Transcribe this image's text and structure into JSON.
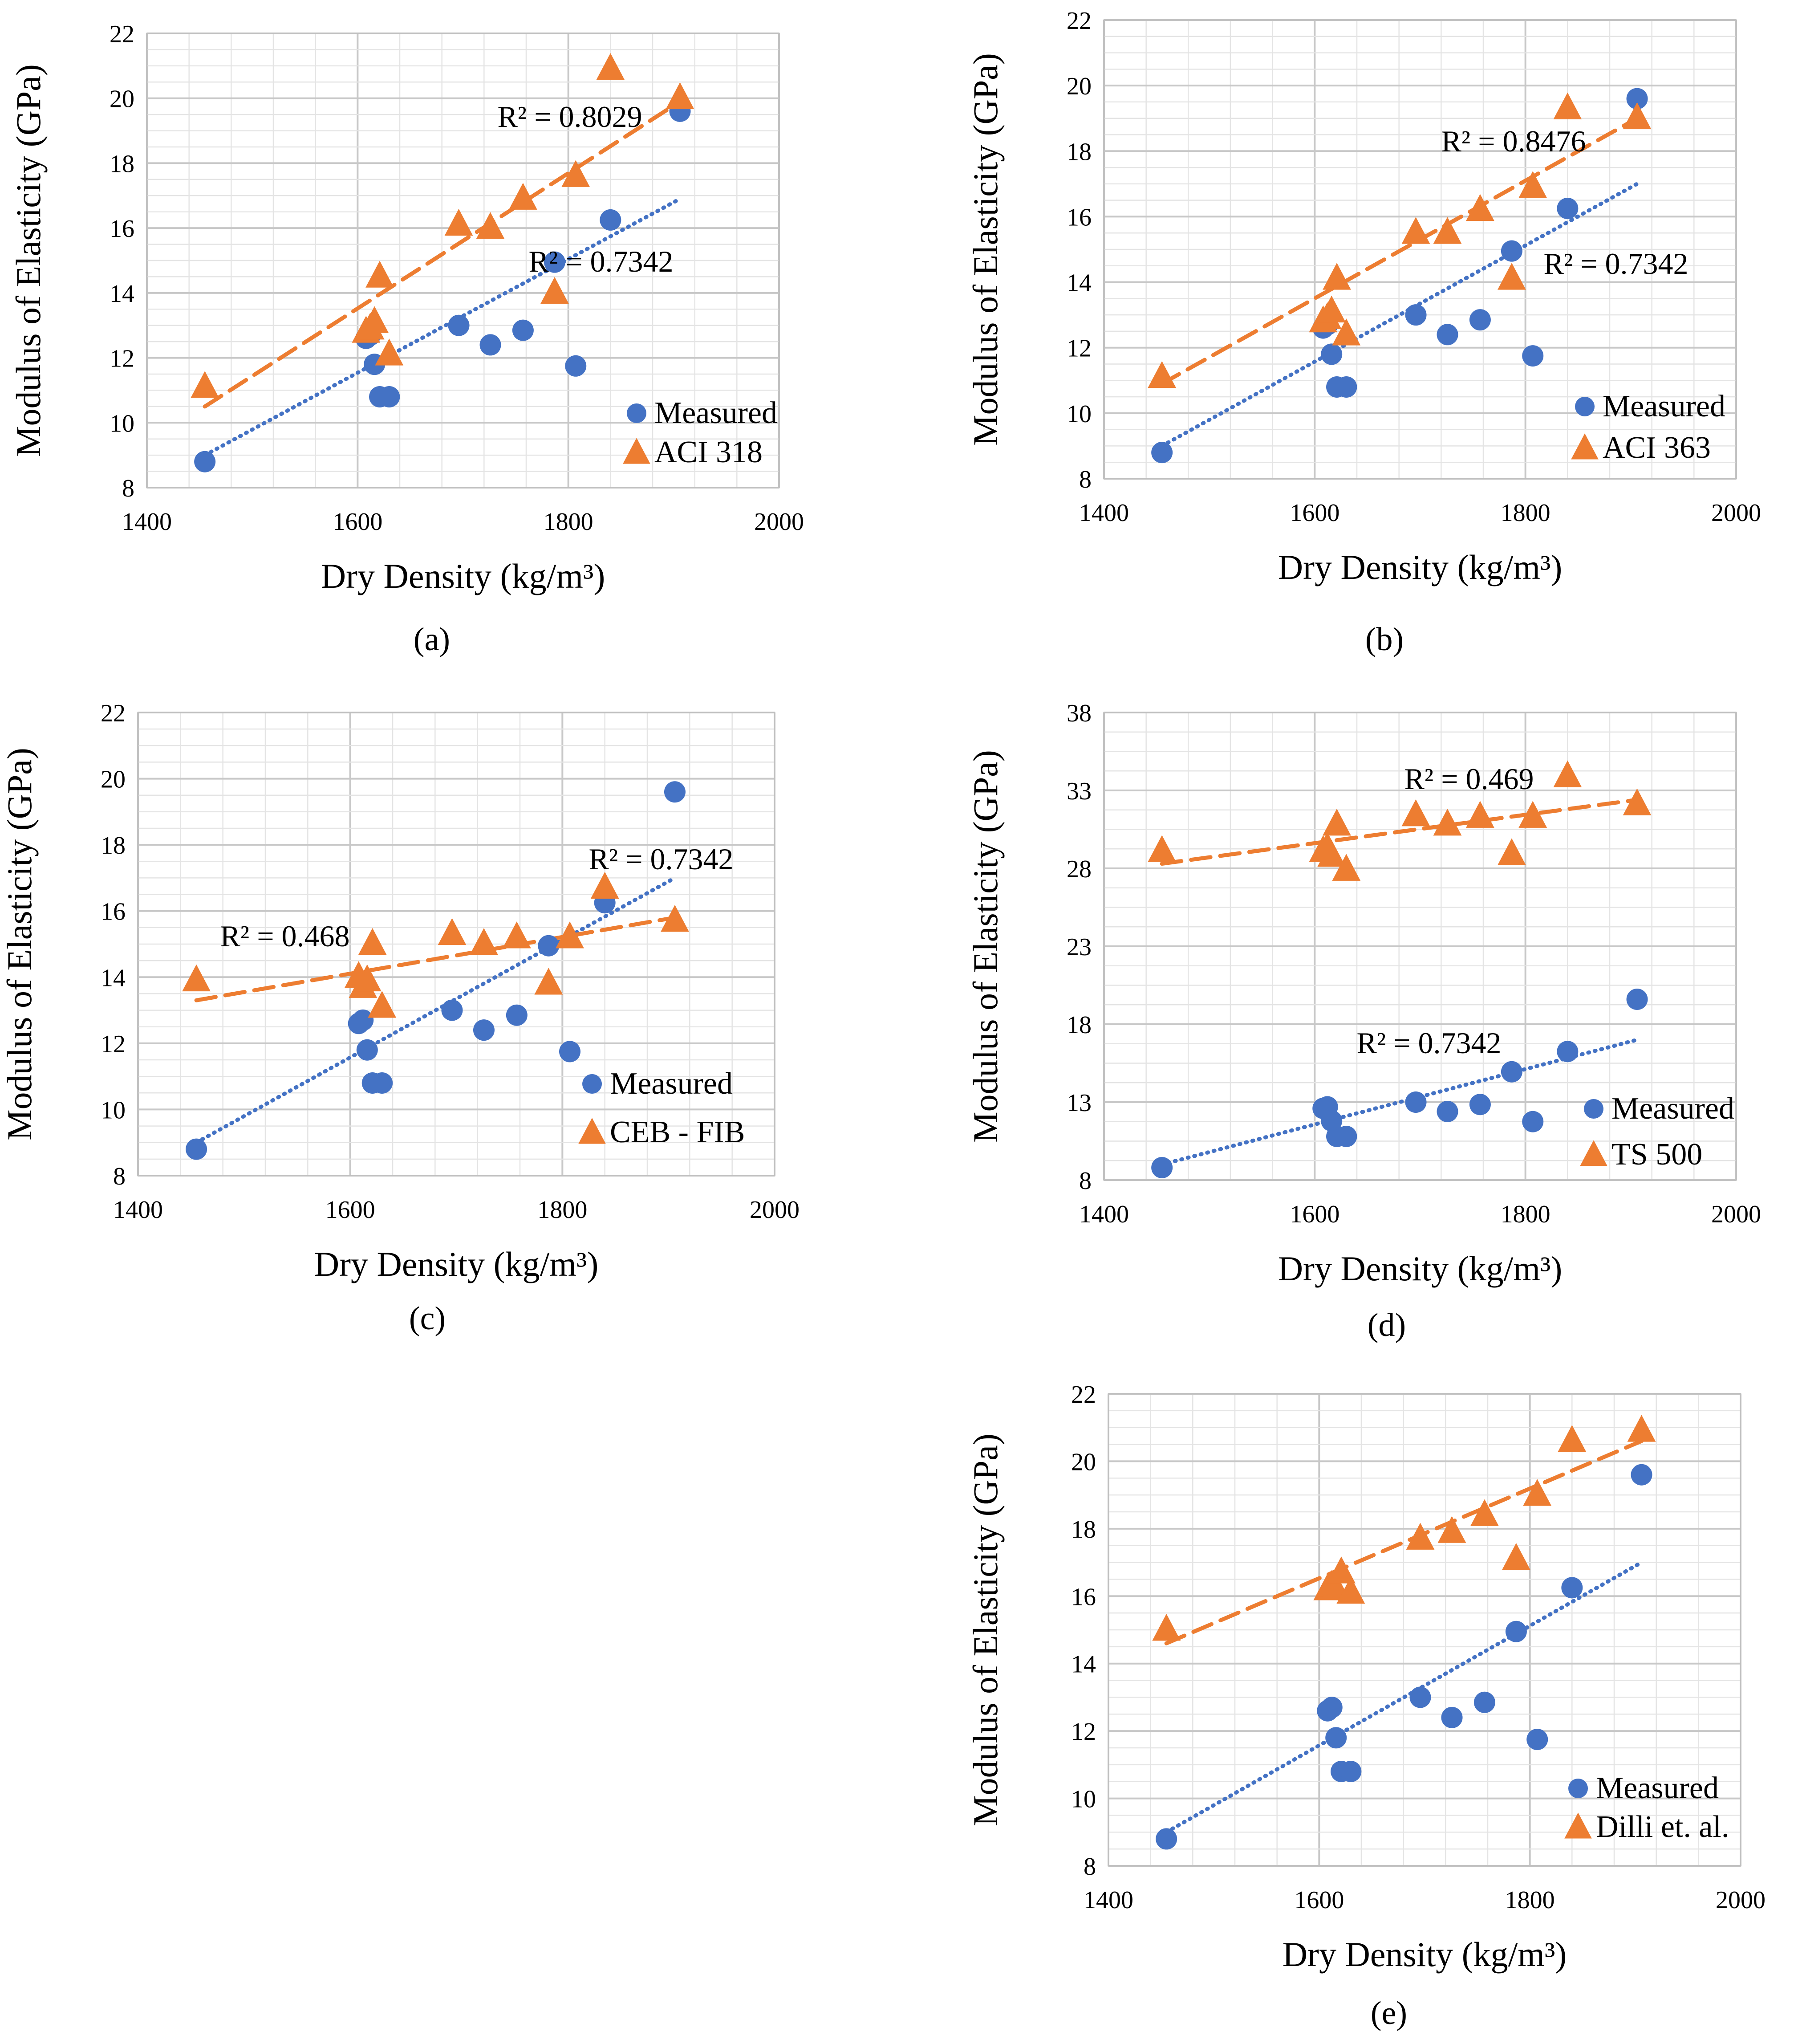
{
  "figure": {
    "captions": [
      "(a)",
      "(b)",
      "(c)",
      "(d)",
      "(e)"
    ]
  },
  "colors": {
    "measured": "#4472C4",
    "predicted": "#ED7D31",
    "grid_major": "#c8c8c8",
    "grid_minor": "#e4e4e4"
  },
  "chart_data": [
    {
      "id": "a",
      "type": "scatter",
      "caption": "(a)",
      "xlabel": "Dry Density (kg/m³)",
      "ylabel": "Modulus of Elasticity (GPa)",
      "xlim": [
        1400,
        2000
      ],
      "ylim": [
        8,
        22
      ],
      "xticks": [
        "1400",
        "1600",
        "1800",
        "2000"
      ],
      "yticks": [
        "8",
        "10",
        "12",
        "14",
        "16",
        "18",
        "20",
        "22"
      ],
      "series": [
        {
          "name": "Measured",
          "marker": "circle",
          "x": [
            1455,
            1608,
            1612,
            1616,
            1621,
            1630,
            1696,
            1726,
            1757,
            1787,
            1807,
            1840,
            1906
          ],
          "y": [
            8.8,
            12.6,
            12.7,
            11.8,
            10.8,
            10.8,
            13.0,
            12.4,
            12.85,
            14.95,
            11.75,
            16.25,
            19.6
          ],
          "trend": {
            "style": "dotted",
            "x": [
              1455,
              1906
            ],
            "y": [
              9.0,
              16.9
            ]
          },
          "r2_label": "R² = 0.7342"
        },
        {
          "name": "ACI 318",
          "marker": "triangle",
          "x": [
            1455,
            1608,
            1612,
            1616,
            1621,
            1630,
            1696,
            1726,
            1757,
            1787,
            1807,
            1840,
            1906
          ],
          "y": [
            11.1,
            12.8,
            12.9,
            13.1,
            14.5,
            12.1,
            16.1,
            16.0,
            16.9,
            14.0,
            17.6,
            20.9,
            20.0
          ],
          "trend": {
            "style": "dashed",
            "x": [
              1455,
              1906
            ],
            "y": [
              10.5,
              19.9
            ]
          },
          "r2_label": "R² = 0.8029"
        }
      ]
    },
    {
      "id": "b",
      "type": "scatter",
      "caption": "(b)",
      "xlabel": "Dry Density (kg/m³)",
      "ylabel": "Modulus of Elasticity (GPa)",
      "xlim": [
        1400,
        2000
      ],
      "ylim": [
        8,
        22
      ],
      "xticks": [
        "1400",
        "1600",
        "1800",
        "2000"
      ],
      "yticks": [
        "8",
        "10",
        "12",
        "14",
        "16",
        "18",
        "20",
        "22"
      ],
      "series": [
        {
          "name": "Measured",
          "marker": "circle",
          "x": [
            1455,
            1608,
            1612,
            1616,
            1621,
            1630,
            1696,
            1726,
            1757,
            1787,
            1807,
            1840,
            1906
          ],
          "y": [
            8.8,
            12.6,
            12.7,
            11.8,
            10.8,
            10.8,
            13.0,
            12.4,
            12.85,
            14.95,
            11.75,
            16.25,
            19.6
          ],
          "trend": {
            "style": "dotted",
            "x": [
              1455,
              1906
            ],
            "y": [
              9.0,
              17.0
            ]
          },
          "r2_label": "R² = 0.7342"
        },
        {
          "name": "ACI 363",
          "marker": "triangle",
          "x": [
            1455,
            1608,
            1612,
            1616,
            1621,
            1630,
            1696,
            1726,
            1757,
            1787,
            1807,
            1840,
            1906
          ],
          "y": [
            11.1,
            12.8,
            12.9,
            13.1,
            14.1,
            12.4,
            15.5,
            15.5,
            16.2,
            14.1,
            16.9,
            19.3,
            19.0
          ],
          "trend": {
            "style": "dashed",
            "x": [
              1455,
              1906
            ],
            "y": [
              10.9,
              19.0
            ]
          },
          "r2_label": "R² = 0.8476"
        }
      ]
    },
    {
      "id": "c",
      "type": "scatter",
      "caption": "(c)",
      "xlabel": "Dry Density (kg/m³)",
      "ylabel": "Modulus of Elasticity (GPa)",
      "xlim": [
        1400,
        2000
      ],
      "ylim": [
        8,
        22
      ],
      "xticks": [
        "1400",
        "1600",
        "1800",
        "2000"
      ],
      "yticks": [
        "8",
        "10",
        "12",
        "14",
        "16",
        "18",
        "20",
        "22"
      ],
      "series": [
        {
          "name": "Measured",
          "marker": "circle",
          "x": [
            1455,
            1608,
            1612,
            1616,
            1621,
            1630,
            1696,
            1726,
            1757,
            1787,
            1807,
            1840,
            1906
          ],
          "y": [
            8.8,
            12.6,
            12.7,
            11.8,
            10.8,
            10.8,
            13.0,
            12.4,
            12.85,
            14.95,
            11.75,
            16.25,
            19.6
          ],
          "trend": {
            "style": "dotted",
            "x": [
              1455,
              1906
            ],
            "y": [
              9.0,
              17.0
            ]
          },
          "r2_label": "R² = 0.7342"
        },
        {
          "name": "CEB - FIB",
          "marker": "triangle",
          "x": [
            1455,
            1608,
            1612,
            1616,
            1621,
            1630,
            1696,
            1726,
            1757,
            1787,
            1807,
            1840,
            1906
          ],
          "y": [
            13.9,
            14.0,
            13.7,
            13.9,
            15.0,
            13.1,
            15.3,
            15.0,
            15.2,
            13.8,
            15.2,
            16.7,
            15.7
          ],
          "trend": {
            "style": "dashed",
            "x": [
              1455,
              1906
            ],
            "y": [
              13.3,
              15.8
            ]
          },
          "r2_label": "R² = 0.468"
        }
      ]
    },
    {
      "id": "d",
      "type": "scatter",
      "caption": "(d)",
      "xlabel": "Dry Density (kg/m³)",
      "ylabel": "Modulus of Elasticity (GPa)",
      "xlim": [
        1400,
        2000
      ],
      "ylim": [
        8,
        38
      ],
      "xticks": [
        "1400",
        "1600",
        "1800",
        "2000"
      ],
      "yticks": [
        "8",
        "13",
        "18",
        "23",
        "28",
        "33",
        "38"
      ],
      "series": [
        {
          "name": "Measured",
          "marker": "circle",
          "x": [
            1455,
            1608,
            1612,
            1616,
            1621,
            1630,
            1696,
            1726,
            1757,
            1787,
            1807,
            1840,
            1906
          ],
          "y": [
            8.8,
            12.6,
            12.7,
            11.8,
            10.8,
            10.8,
            13.0,
            12.4,
            12.85,
            14.95,
            11.75,
            16.25,
            19.6
          ],
          "trend": {
            "style": "dotted",
            "x": [
              1455,
              1906
            ],
            "y": [
              9.0,
              17.0
            ]
          },
          "r2_label": "R² = 0.7342"
        },
        {
          "name": "TS 500",
          "marker": "triangle",
          "x": [
            1455,
            1608,
            1612,
            1616,
            1621,
            1630,
            1696,
            1726,
            1757,
            1787,
            1807,
            1840,
            1906
          ],
          "y": [
            29.1,
            29.1,
            29.3,
            28.8,
            30.8,
            27.9,
            31.4,
            30.8,
            31.3,
            28.9,
            31.3,
            33.9,
            32.1
          ],
          "trend": {
            "style": "dashed",
            "x": [
              1455,
              1906
            ],
            "y": [
              28.3,
              32.4
            ]
          },
          "r2_label": "R² = 0.469"
        }
      ]
    },
    {
      "id": "e",
      "type": "scatter",
      "caption": "(e)",
      "xlabel": "Dry Density (kg/m³)",
      "ylabel": "Modulus of Elasticity (GPa)",
      "xlim": [
        1400,
        2000
      ],
      "ylim": [
        8,
        22
      ],
      "xticks": [
        "1400",
        "1600",
        "1800",
        "2000"
      ],
      "yticks": [
        "8",
        "10",
        "12",
        "14",
        "16",
        "18",
        "20",
        "22"
      ],
      "series": [
        {
          "name": "Measured",
          "marker": "circle",
          "x": [
            1455,
            1608,
            1612,
            1616,
            1621,
            1630,
            1696,
            1726,
            1757,
            1787,
            1807,
            1840,
            1906
          ],
          "y": [
            8.8,
            12.6,
            12.7,
            11.8,
            10.8,
            10.8,
            13.0,
            12.4,
            12.85,
            14.95,
            11.75,
            16.25,
            19.6
          ],
          "trend": {
            "style": "dotted",
            "x": [
              1455,
              1906
            ],
            "y": [
              9.0,
              17.0
            ]
          },
          "r2_label": ""
        },
        {
          "name": "Dilli et. al.",
          "marker": "triangle",
          "x": [
            1455,
            1608,
            1612,
            1616,
            1621,
            1630,
            1696,
            1726,
            1757,
            1787,
            1807,
            1840,
            1906
          ],
          "y": [
            15.0,
            16.2,
            16.3,
            16.2,
            16.7,
            16.1,
            17.7,
            17.9,
            18.4,
            17.1,
            19.0,
            20.6,
            20.9
          ],
          "trend": {
            "style": "dashed",
            "x": [
              1455,
              1906
            ],
            "y": [
              14.6,
              20.6
            ]
          },
          "r2_label": ""
        }
      ]
    }
  ]
}
